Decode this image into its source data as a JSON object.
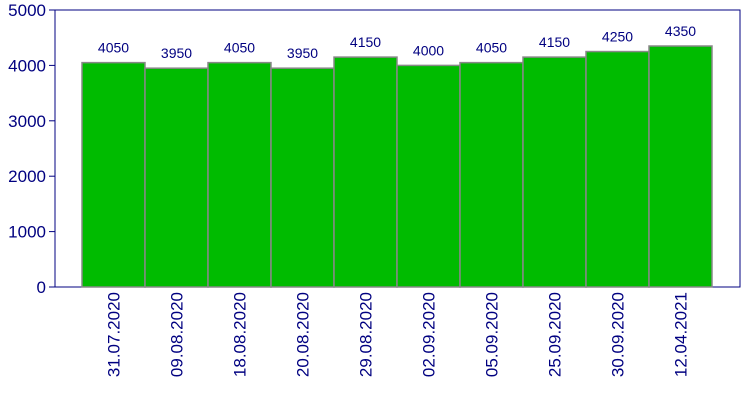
{
  "chart_data": {
    "type": "bar",
    "categories": [
      "31.07.2020",
      "09.08.2020",
      "18.08.2020",
      "20.08.2020",
      "29.08.2020",
      "02.09.2020",
      "05.09.2020",
      "25.09.2020",
      "30.09.2020",
      "12.04.2021"
    ],
    "values": [
      4050,
      3950,
      4050,
      3950,
      4150,
      4000,
      4050,
      4150,
      4250,
      4350
    ],
    "color": "#00bb00",
    "ylim": [
      0,
      5000
    ],
    "yticks": [
      0,
      1000,
      2000,
      3000,
      4000,
      5000
    ],
    "grid": false
  }
}
